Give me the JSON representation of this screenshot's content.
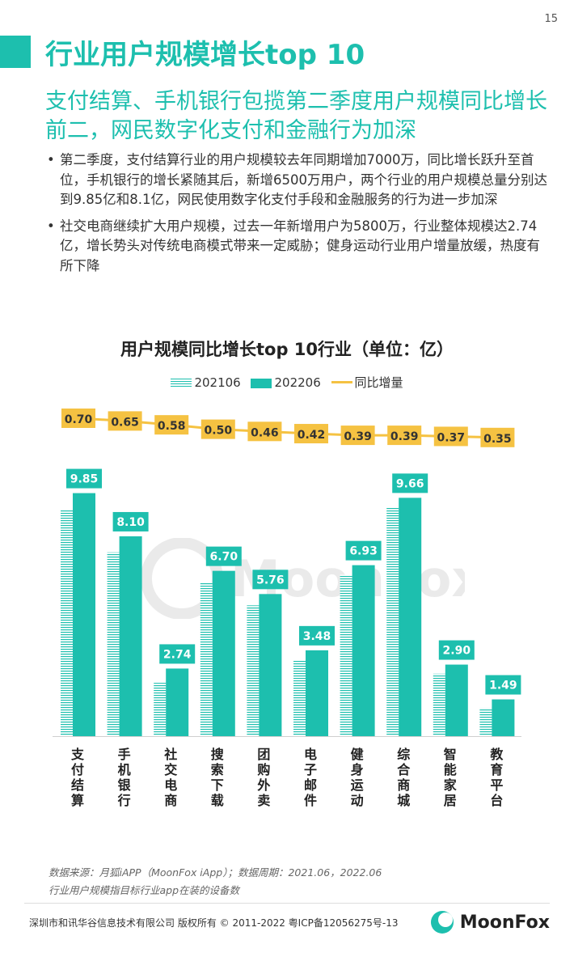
{
  "page_number": "15",
  "title": "行业用户规模增长top 10",
  "subtitle": "支付结算、手机银行包揽第二季度用户规模同比增长前二，网民数字化支付和金融行为加深",
  "bullets": [
    "第二季度，支付结算行业的用户规模较去年同期增加7000万，同比增长跃升至首位，手机银行的增长紧随其后，新增6500万用户，两个行业的用户规模总量分别达到9.85亿和8.1亿，网民使用数字化支付手段和金融服务的行为进一步加深",
    "社交电商继续扩大用户规模，过去一年新增用户为5800万，行业整体规模达2.74亿，增长势头对传统电商模式带来一定威胁；健身运动行业用户增量放缓，热度有所下降"
  ],
  "chart_data": {
    "type": "bar",
    "title": "用户规模同比增长top 10行业（单位：亿）",
    "categories": [
      "支付结算",
      "手机银行",
      "社交电商",
      "搜索下载",
      "团购外卖",
      "电子邮件",
      "健身运动",
      "综合商城",
      "智能家居",
      "教育平台"
    ],
    "series": [
      {
        "name": "202106",
        "values": [
          9.15,
          7.45,
          2.16,
          6.2,
          5.3,
          3.06,
          6.54,
          9.27,
          2.53,
          1.14
        ]
      },
      {
        "name": "202206",
        "values": [
          9.85,
          8.1,
          2.74,
          6.7,
          5.76,
          3.48,
          6.93,
          9.66,
          2.9,
          1.49
        ],
        "labels": [
          "9.85",
          "8.10",
          "2.74",
          "6.70",
          "5.76",
          "3.48",
          "6.93",
          "9.66",
          "2.90",
          "1.49"
        ]
      },
      {
        "name": "同比增量",
        "type": "line",
        "values": [
          0.7,
          0.65,
          0.58,
          0.5,
          0.46,
          0.42,
          0.39,
          0.39,
          0.37,
          0.35
        ],
        "labels": [
          "0.70",
          "0.65",
          "0.58",
          "0.50",
          "0.46",
          "0.42",
          "0.39",
          "0.39",
          "0.37",
          "0.35"
        ]
      }
    ],
    "legend_position": "top-center",
    "grid": false,
    "colors": {
      "bar": "#1dbfae",
      "line": "#f5c242",
      "line_label_bg": "#f5c242",
      "bar_label_bg": "#1dbfae"
    }
  },
  "legend": {
    "s1": "202106",
    "s2": "202206",
    "s3": "同比增量"
  },
  "watermark": "MoonFox",
  "source_lines": [
    "数据来源：月狐iAPP（MoonFox iApp）；数据周期：2021.06，2022.06",
    "行业用户规模指目标行业app在装的设备数"
  ],
  "footer": "深圳市和讯华谷信息技术有限公司 版权所有 © 2011-2022 粤ICP备12056275号-13",
  "logo_text": "MoonFox"
}
